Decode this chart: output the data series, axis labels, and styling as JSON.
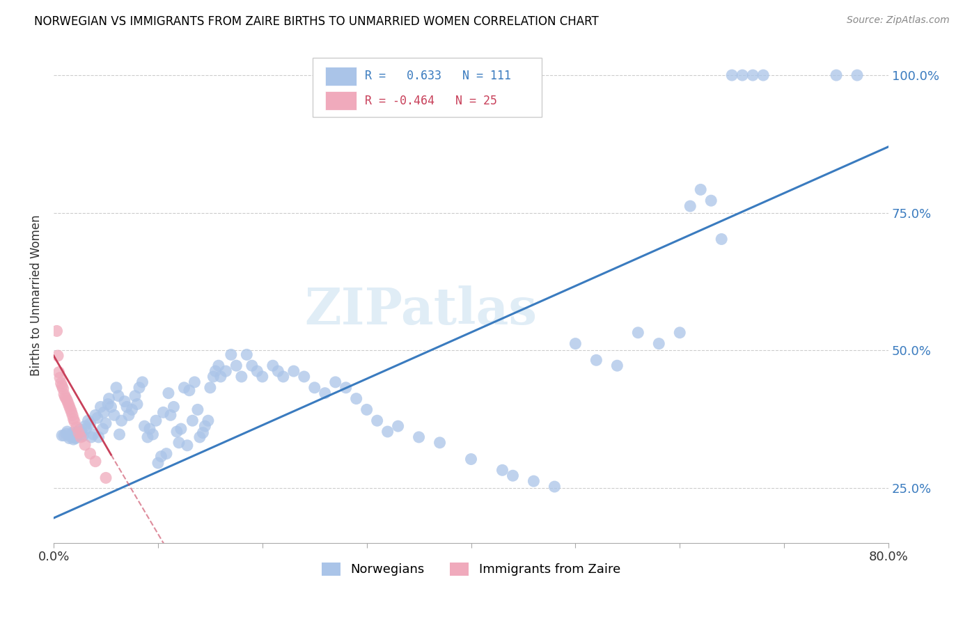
{
  "title": "NORWEGIAN VS IMMIGRANTS FROM ZAIRE BIRTHS TO UNMARRIED WOMEN CORRELATION CHART",
  "source": "Source: ZipAtlas.com",
  "ylabel": "Births to Unmarried Women",
  "xlim": [
    0.0,
    0.8
  ],
  "ylim": [
    0.15,
    1.05
  ],
  "yticks": [
    0.25,
    0.5,
    0.75,
    1.0
  ],
  "ytick_labels": [
    "25.0%",
    "50.0%",
    "75.0%",
    "100.0%"
  ],
  "xticks": [
    0.0,
    0.1,
    0.2,
    0.3,
    0.4,
    0.5,
    0.6,
    0.7,
    0.8
  ],
  "xtick_labels": [
    "0.0%",
    "",
    "",
    "",
    "",
    "",
    "",
    "",
    "80.0%"
  ],
  "blue_color": "#aac4e8",
  "pink_color": "#f0aabc",
  "line_blue": "#3a7bbf",
  "line_pink": "#c8405a",
  "watermark": "ZIPatlas",
  "norwegian_points": [
    [
      0.008,
      0.345
    ],
    [
      0.01,
      0.345
    ],
    [
      0.012,
      0.348
    ],
    [
      0.013,
      0.352
    ],
    [
      0.015,
      0.34
    ],
    [
      0.016,
      0.343
    ],
    [
      0.017,
      0.347
    ],
    [
      0.018,
      0.35
    ],
    [
      0.019,
      0.338
    ],
    [
      0.02,
      0.342
    ],
    [
      0.021,
      0.34
    ],
    [
      0.022,
      0.347
    ],
    [
      0.023,
      0.352
    ],
    [
      0.025,
      0.356
    ],
    [
      0.026,
      0.347
    ],
    [
      0.027,
      0.352
    ],
    [
      0.028,
      0.344
    ],
    [
      0.03,
      0.362
    ],
    [
      0.031,
      0.357
    ],
    [
      0.033,
      0.372
    ],
    [
      0.035,
      0.367
    ],
    [
      0.036,
      0.342
    ],
    [
      0.038,
      0.347
    ],
    [
      0.04,
      0.382
    ],
    [
      0.042,
      0.377
    ],
    [
      0.043,
      0.342
    ],
    [
      0.045,
      0.397
    ],
    [
      0.047,
      0.357
    ],
    [
      0.048,
      0.387
    ],
    [
      0.05,
      0.367
    ],
    [
      0.052,
      0.402
    ],
    [
      0.053,
      0.412
    ],
    [
      0.055,
      0.397
    ],
    [
      0.058,
      0.382
    ],
    [
      0.06,
      0.432
    ],
    [
      0.062,
      0.417
    ],
    [
      0.063,
      0.347
    ],
    [
      0.065,
      0.372
    ],
    [
      0.068,
      0.407
    ],
    [
      0.07,
      0.397
    ],
    [
      0.072,
      0.382
    ],
    [
      0.075,
      0.392
    ],
    [
      0.078,
      0.417
    ],
    [
      0.08,
      0.402
    ],
    [
      0.082,
      0.432
    ],
    [
      0.085,
      0.442
    ],
    [
      0.087,
      0.362
    ],
    [
      0.09,
      0.342
    ],
    [
      0.092,
      0.357
    ],
    [
      0.095,
      0.347
    ],
    [
      0.098,
      0.372
    ],
    [
      0.1,
      0.295
    ],
    [
      0.103,
      0.307
    ],
    [
      0.105,
      0.387
    ],
    [
      0.108,
      0.312
    ],
    [
      0.11,
      0.422
    ],
    [
      0.112,
      0.382
    ],
    [
      0.115,
      0.397
    ],
    [
      0.118,
      0.352
    ],
    [
      0.12,
      0.332
    ],
    [
      0.122,
      0.357
    ],
    [
      0.125,
      0.432
    ],
    [
      0.128,
      0.327
    ],
    [
      0.13,
      0.427
    ],
    [
      0.133,
      0.372
    ],
    [
      0.135,
      0.442
    ],
    [
      0.138,
      0.392
    ],
    [
      0.14,
      0.342
    ],
    [
      0.143,
      0.35
    ],
    [
      0.145,
      0.362
    ],
    [
      0.148,
      0.372
    ],
    [
      0.15,
      0.432
    ],
    [
      0.153,
      0.452
    ],
    [
      0.155,
      0.462
    ],
    [
      0.158,
      0.472
    ],
    [
      0.16,
      0.452
    ],
    [
      0.165,
      0.462
    ],
    [
      0.17,
      0.492
    ],
    [
      0.175,
      0.472
    ],
    [
      0.18,
      0.452
    ],
    [
      0.185,
      0.492
    ],
    [
      0.19,
      0.472
    ],
    [
      0.195,
      0.462
    ],
    [
      0.2,
      0.452
    ],
    [
      0.21,
      0.472
    ],
    [
      0.215,
      0.462
    ],
    [
      0.22,
      0.452
    ],
    [
      0.23,
      0.462
    ],
    [
      0.24,
      0.452
    ],
    [
      0.25,
      0.432
    ],
    [
      0.26,
      0.422
    ],
    [
      0.27,
      0.442
    ],
    [
      0.28,
      0.432
    ],
    [
      0.29,
      0.412
    ],
    [
      0.3,
      0.392
    ],
    [
      0.31,
      0.372
    ],
    [
      0.32,
      0.352
    ],
    [
      0.33,
      0.362
    ],
    [
      0.35,
      0.342
    ],
    [
      0.37,
      0.332
    ],
    [
      0.4,
      0.302
    ],
    [
      0.43,
      0.282
    ],
    [
      0.44,
      0.272
    ],
    [
      0.46,
      0.262
    ],
    [
      0.48,
      0.252
    ],
    [
      0.5,
      0.512
    ],
    [
      0.52,
      0.482
    ],
    [
      0.54,
      0.472
    ],
    [
      0.56,
      0.532
    ],
    [
      0.58,
      0.512
    ],
    [
      0.6,
      0.532
    ],
    [
      0.61,
      0.762
    ],
    [
      0.62,
      0.792
    ],
    [
      0.63,
      0.772
    ],
    [
      0.64,
      0.702
    ],
    [
      0.65,
      1.0
    ],
    [
      0.66,
      1.0
    ],
    [
      0.67,
      1.0
    ],
    [
      0.68,
      1.0
    ],
    [
      0.75,
      1.0
    ],
    [
      0.77,
      1.0
    ]
  ],
  "zaire_points": [
    [
      0.003,
      0.535
    ],
    [
      0.004,
      0.49
    ],
    [
      0.005,
      0.46
    ],
    [
      0.006,
      0.45
    ],
    [
      0.007,
      0.44
    ],
    [
      0.008,
      0.435
    ],
    [
      0.009,
      0.43
    ],
    [
      0.01,
      0.42
    ],
    [
      0.011,
      0.415
    ],
    [
      0.012,
      0.412
    ],
    [
      0.013,
      0.408
    ],
    [
      0.014,
      0.403
    ],
    [
      0.015,
      0.398
    ],
    [
      0.016,
      0.393
    ],
    [
      0.017,
      0.388
    ],
    [
      0.018,
      0.382
    ],
    [
      0.019,
      0.375
    ],
    [
      0.02,
      0.37
    ],
    [
      0.022,
      0.36
    ],
    [
      0.024,
      0.35
    ],
    [
      0.026,
      0.342
    ],
    [
      0.03,
      0.328
    ],
    [
      0.035,
      0.312
    ],
    [
      0.04,
      0.298
    ],
    [
      0.05,
      0.268
    ]
  ],
  "blue_trendline": [
    [
      0.0,
      0.195
    ],
    [
      0.8,
      0.87
    ]
  ],
  "pink_trendline_solid": [
    [
      0.0,
      0.49
    ],
    [
      0.055,
      0.31
    ]
  ],
  "pink_trendline_dash": [
    [
      0.055,
      0.31
    ],
    [
      0.13,
      0.07
    ]
  ]
}
